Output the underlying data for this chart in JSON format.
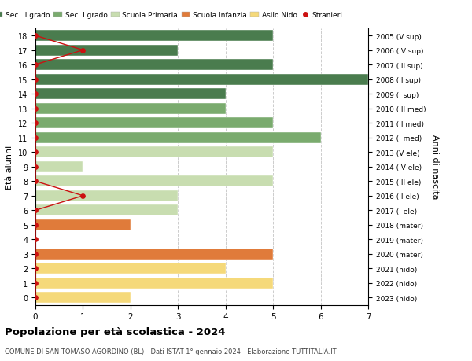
{
  "ages": [
    18,
    17,
    16,
    15,
    14,
    13,
    12,
    11,
    10,
    9,
    8,
    7,
    6,
    5,
    4,
    3,
    2,
    1,
    0
  ],
  "right_labels": [
    "2005 (V sup)",
    "2006 (IV sup)",
    "2007 (III sup)",
    "2008 (II sup)",
    "2009 (I sup)",
    "2010 (III med)",
    "2011 (II med)",
    "2012 (I med)",
    "2013 (V ele)",
    "2014 (IV ele)",
    "2015 (III ele)",
    "2016 (II ele)",
    "2017 (I ele)",
    "2018 (mater)",
    "2019 (mater)",
    "2020 (mater)",
    "2021 (nido)",
    "2022 (nido)",
    "2023 (nido)"
  ],
  "bar_values": [
    5,
    3,
    5,
    7,
    4,
    4,
    5,
    6,
    5,
    1,
    5,
    3,
    3,
    2,
    0,
    5,
    4,
    5,
    2
  ],
  "bar_colors": [
    "#4a7c4e",
    "#4a7c4e",
    "#4a7c4e",
    "#4a7c4e",
    "#4a7c4e",
    "#7aab6e",
    "#7aab6e",
    "#7aab6e",
    "#c8ddb0",
    "#c8ddb0",
    "#c8ddb0",
    "#c8ddb0",
    "#c8ddb0",
    "#e07b3a",
    "#e07b3a",
    "#e07b3a",
    "#f5d97a",
    "#f5d97a",
    "#f5d97a"
  ],
  "stranieri_values": [
    0,
    1,
    0,
    0,
    0,
    0,
    0,
    0,
    0,
    0,
    0,
    1,
    0,
    0,
    0,
    0,
    0,
    0,
    0
  ],
  "legend_labels": [
    "Sec. II grado",
    "Sec. I grado",
    "Scuola Primaria",
    "Scuola Infanzia",
    "Asilo Nido",
    "Stranieri"
  ],
  "legend_colors": [
    "#4a7c4e",
    "#7aab6e",
    "#c8ddb0",
    "#e07b3a",
    "#f5d97a",
    "#cc1111"
  ],
  "title": "Popolazione per età scolastica - 2024",
  "subtitle": "COMUNE DI SAN TOMASO AGORDINO (BL) - Dati ISTAT 1° gennaio 2024 - Elaborazione TUTTITALIA.IT",
  "ylabel_left": "Età alunni",
  "ylabel_right": "Anni di nascita",
  "xlim": [
    0,
    7
  ],
  "background_color": "#ffffff",
  "bar_height": 0.75
}
